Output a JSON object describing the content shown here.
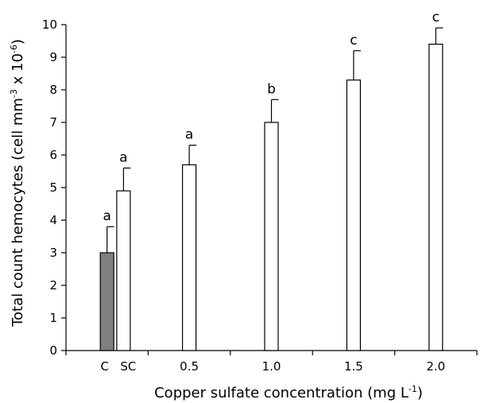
{
  "chart_data": {
    "type": "bar",
    "categories": [
      "C",
      "SC",
      "0.5",
      "1.0",
      "1.5",
      "2.0"
    ],
    "values": [
      3.0,
      4.9,
      5.7,
      7.0,
      8.3,
      9.4
    ],
    "errors": [
      0.8,
      0.7,
      0.6,
      0.7,
      0.9,
      0.5
    ],
    "significance": [
      "a",
      "a",
      "a",
      "b",
      "c",
      "c"
    ],
    "bar_colors": [
      "#7f7f7f",
      "#ffffff",
      "#ffffff",
      "#ffffff",
      "#ffffff",
      "#ffffff"
    ],
    "x_positions": [
      0.5,
      0.7,
      1.5,
      2.5,
      3.5,
      4.5
    ],
    "title": "",
    "xlabel": {
      "main": "Copper sulfate concentration (mg L",
      "sup": "-1",
      "end": ")"
    },
    "ylabel": {
      "part1": "Total count hemocytes (cell mm",
      "sup1": "-3",
      "part2": " x 10",
      "sup2": "-6",
      "part3": ")"
    },
    "ylim": [
      0,
      10
    ],
    "yticks": [
      0,
      1,
      2,
      3,
      4,
      5,
      6,
      7,
      8,
      9,
      10
    ],
    "grid": false,
    "legend": "none"
  }
}
